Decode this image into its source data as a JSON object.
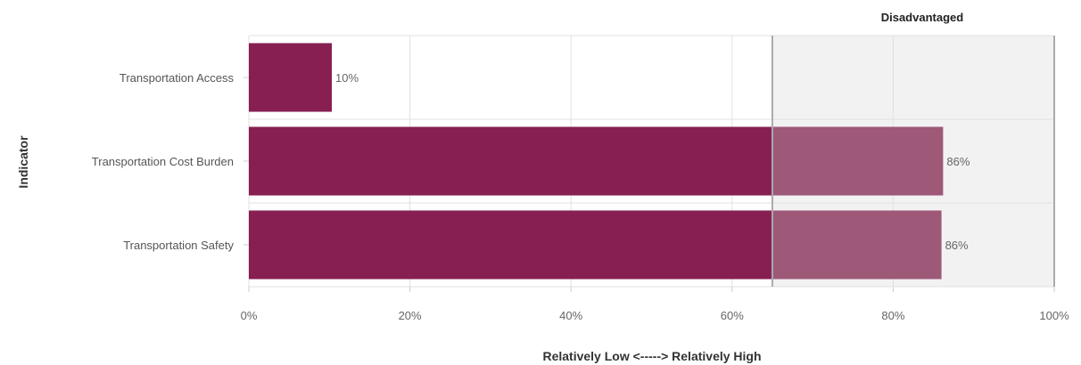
{
  "chart_data": {
    "type": "bar",
    "orientation": "horizontal",
    "categories": [
      "Transportation Access",
      "Transportation Cost Burden",
      "Transportation Safety"
    ],
    "values": [
      10.3,
      86.2,
      86.0
    ],
    "data_labels": [
      "10%",
      "86%",
      "86%"
    ],
    "xlabel": "Relatively Low <-----> Relatively High",
    "ylabel": "Indicator",
    "xlim": [
      0,
      100
    ],
    "x_ticks": [
      "0%",
      "20%",
      "40%",
      "60%",
      "80%",
      "100%"
    ],
    "threshold": {
      "value": 65,
      "label": "Disadvantaged"
    },
    "grid": true,
    "colors": {
      "bar": "#871F52",
      "bar_in_region": "#9E5878",
      "region_fill": "#F2F2F2",
      "threshold_line": "#AAAAAA",
      "grid": "#E0E0E0"
    }
  }
}
